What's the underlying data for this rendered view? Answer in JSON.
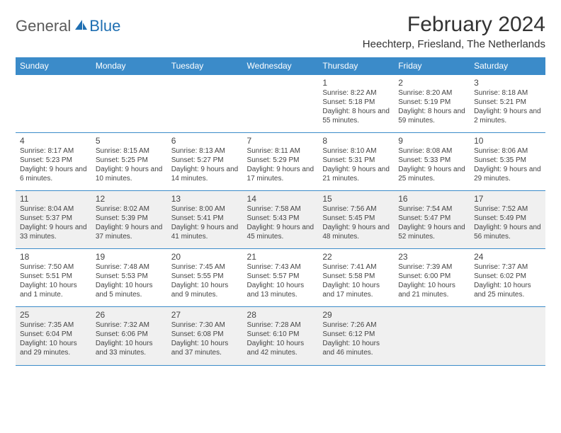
{
  "logo": {
    "text1": "General",
    "text2": "Blue"
  },
  "title": "February 2024",
  "location": "Heechterp, Friesland, The Netherlands",
  "colors": {
    "accent": "#3b8bc9",
    "logo_blue": "#1f6fb2",
    "text": "#333333",
    "shaded_bg": "#f0f0f0",
    "white": "#ffffff"
  },
  "day_headers": [
    "Sunday",
    "Monday",
    "Tuesday",
    "Wednesday",
    "Thursday",
    "Friday",
    "Saturday"
  ],
  "weeks": [
    [
      {
        "n": "",
        "sr": "",
        "ss": "",
        "dl": ""
      },
      {
        "n": "",
        "sr": "",
        "ss": "",
        "dl": ""
      },
      {
        "n": "",
        "sr": "",
        "ss": "",
        "dl": ""
      },
      {
        "n": "",
        "sr": "",
        "ss": "",
        "dl": ""
      },
      {
        "n": "1",
        "sr": "Sunrise: 8:22 AM",
        "ss": "Sunset: 5:18 PM",
        "dl": "Daylight: 8 hours and 55 minutes."
      },
      {
        "n": "2",
        "sr": "Sunrise: 8:20 AM",
        "ss": "Sunset: 5:19 PM",
        "dl": "Daylight: 8 hours and 59 minutes."
      },
      {
        "n": "3",
        "sr": "Sunrise: 8:18 AM",
        "ss": "Sunset: 5:21 PM",
        "dl": "Daylight: 9 hours and 2 minutes."
      }
    ],
    [
      {
        "n": "4",
        "sr": "Sunrise: 8:17 AM",
        "ss": "Sunset: 5:23 PM",
        "dl": "Daylight: 9 hours and 6 minutes."
      },
      {
        "n": "5",
        "sr": "Sunrise: 8:15 AM",
        "ss": "Sunset: 5:25 PM",
        "dl": "Daylight: 9 hours and 10 minutes."
      },
      {
        "n": "6",
        "sr": "Sunrise: 8:13 AM",
        "ss": "Sunset: 5:27 PM",
        "dl": "Daylight: 9 hours and 14 minutes."
      },
      {
        "n": "7",
        "sr": "Sunrise: 8:11 AM",
        "ss": "Sunset: 5:29 PM",
        "dl": "Daylight: 9 hours and 17 minutes."
      },
      {
        "n": "8",
        "sr": "Sunrise: 8:10 AM",
        "ss": "Sunset: 5:31 PM",
        "dl": "Daylight: 9 hours and 21 minutes."
      },
      {
        "n": "9",
        "sr": "Sunrise: 8:08 AM",
        "ss": "Sunset: 5:33 PM",
        "dl": "Daylight: 9 hours and 25 minutes."
      },
      {
        "n": "10",
        "sr": "Sunrise: 8:06 AM",
        "ss": "Sunset: 5:35 PM",
        "dl": "Daylight: 9 hours and 29 minutes."
      }
    ],
    [
      {
        "n": "11",
        "sr": "Sunrise: 8:04 AM",
        "ss": "Sunset: 5:37 PM",
        "dl": "Daylight: 9 hours and 33 minutes."
      },
      {
        "n": "12",
        "sr": "Sunrise: 8:02 AM",
        "ss": "Sunset: 5:39 PM",
        "dl": "Daylight: 9 hours and 37 minutes."
      },
      {
        "n": "13",
        "sr": "Sunrise: 8:00 AM",
        "ss": "Sunset: 5:41 PM",
        "dl": "Daylight: 9 hours and 41 minutes."
      },
      {
        "n": "14",
        "sr": "Sunrise: 7:58 AM",
        "ss": "Sunset: 5:43 PM",
        "dl": "Daylight: 9 hours and 45 minutes."
      },
      {
        "n": "15",
        "sr": "Sunrise: 7:56 AM",
        "ss": "Sunset: 5:45 PM",
        "dl": "Daylight: 9 hours and 48 minutes."
      },
      {
        "n": "16",
        "sr": "Sunrise: 7:54 AM",
        "ss": "Sunset: 5:47 PM",
        "dl": "Daylight: 9 hours and 52 minutes."
      },
      {
        "n": "17",
        "sr": "Sunrise: 7:52 AM",
        "ss": "Sunset: 5:49 PM",
        "dl": "Daylight: 9 hours and 56 minutes."
      }
    ],
    [
      {
        "n": "18",
        "sr": "Sunrise: 7:50 AM",
        "ss": "Sunset: 5:51 PM",
        "dl": "Daylight: 10 hours and 1 minute."
      },
      {
        "n": "19",
        "sr": "Sunrise: 7:48 AM",
        "ss": "Sunset: 5:53 PM",
        "dl": "Daylight: 10 hours and 5 minutes."
      },
      {
        "n": "20",
        "sr": "Sunrise: 7:45 AM",
        "ss": "Sunset: 5:55 PM",
        "dl": "Daylight: 10 hours and 9 minutes."
      },
      {
        "n": "21",
        "sr": "Sunrise: 7:43 AM",
        "ss": "Sunset: 5:57 PM",
        "dl": "Daylight: 10 hours and 13 minutes."
      },
      {
        "n": "22",
        "sr": "Sunrise: 7:41 AM",
        "ss": "Sunset: 5:58 PM",
        "dl": "Daylight: 10 hours and 17 minutes."
      },
      {
        "n": "23",
        "sr": "Sunrise: 7:39 AM",
        "ss": "Sunset: 6:00 PM",
        "dl": "Daylight: 10 hours and 21 minutes."
      },
      {
        "n": "24",
        "sr": "Sunrise: 7:37 AM",
        "ss": "Sunset: 6:02 PM",
        "dl": "Daylight: 10 hours and 25 minutes."
      }
    ],
    [
      {
        "n": "25",
        "sr": "Sunrise: 7:35 AM",
        "ss": "Sunset: 6:04 PM",
        "dl": "Daylight: 10 hours and 29 minutes."
      },
      {
        "n": "26",
        "sr": "Sunrise: 7:32 AM",
        "ss": "Sunset: 6:06 PM",
        "dl": "Daylight: 10 hours and 33 minutes."
      },
      {
        "n": "27",
        "sr": "Sunrise: 7:30 AM",
        "ss": "Sunset: 6:08 PM",
        "dl": "Daylight: 10 hours and 37 minutes."
      },
      {
        "n": "28",
        "sr": "Sunrise: 7:28 AM",
        "ss": "Sunset: 6:10 PM",
        "dl": "Daylight: 10 hours and 42 minutes."
      },
      {
        "n": "29",
        "sr": "Sunrise: 7:26 AM",
        "ss": "Sunset: 6:12 PM",
        "dl": "Daylight: 10 hours and 46 minutes."
      },
      {
        "n": "",
        "sr": "",
        "ss": "",
        "dl": ""
      },
      {
        "n": "",
        "sr": "",
        "ss": "",
        "dl": ""
      }
    ]
  ],
  "shaded_weeks": [
    2,
    4
  ]
}
